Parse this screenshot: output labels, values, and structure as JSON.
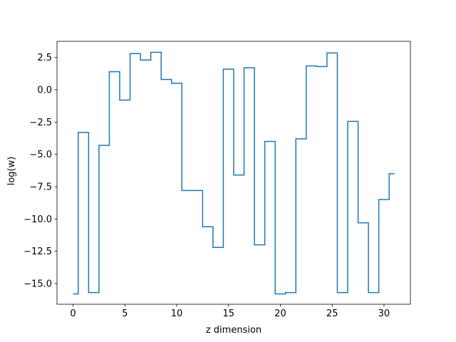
{
  "chart_data": {
    "type": "line",
    "drawstyle": "steps-mid",
    "xlabel": "z dimension",
    "ylabel": "log(w)",
    "xlim": [
      -1.55,
      32.55
    ],
    "ylim": [
      -16.6,
      3.75
    ],
    "xticks": [
      0,
      5,
      10,
      15,
      20,
      25,
      30
    ],
    "yticks": [
      2.5,
      0.0,
      -2.5,
      -5.0,
      -7.5,
      -10.0,
      -12.5,
      -15.0
    ],
    "xtick_labels": [
      "0",
      "5",
      "10",
      "15",
      "20",
      "25",
      "30"
    ],
    "ytick_labels": [
      "2.5",
      "0.0",
      "−2.5",
      "−5.0",
      "−7.5",
      "−10.0",
      "−12.5",
      "−15.0"
    ],
    "grid": false,
    "color": "#1f77b4",
    "series": [
      {
        "x": [
          0,
          1,
          2,
          3,
          4,
          5,
          6,
          7,
          8,
          9,
          10,
          11,
          12,
          13,
          14,
          15,
          16,
          17,
          18,
          19,
          20,
          21,
          22,
          23,
          24,
          25,
          26,
          27,
          28,
          29,
          30,
          31
        ],
        "values": [
          -15.8,
          -3.3,
          -15.7,
          -4.3,
          1.4,
          -0.8,
          2.8,
          2.3,
          2.9,
          0.8,
          0.5,
          -7.8,
          -7.8,
          -10.6,
          -12.2,
          1.6,
          -6.6,
          1.7,
          -12.0,
          -4.0,
          -15.8,
          -15.7,
          -3.8,
          1.85,
          1.8,
          2.85,
          -15.7,
          -2.45,
          -10.3,
          -15.7,
          -8.5,
          -6.5
        ]
      }
    ]
  }
}
